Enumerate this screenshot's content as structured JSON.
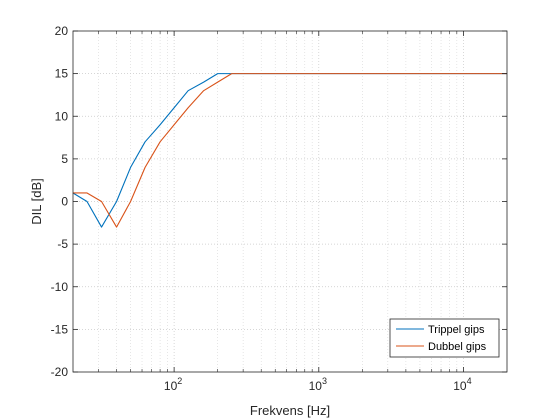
{
  "chart_data": {
    "type": "line",
    "xscale": "log",
    "xlabel": "Frekvens [Hz]",
    "ylabel": "DIL [dB]",
    "xlim": [
      20,
      20000
    ],
    "ylim": [
      -20,
      20
    ],
    "x_ticks": [
      {
        "value": 100,
        "base": "10",
        "exp": "2"
      },
      {
        "value": 1000,
        "base": "10",
        "exp": "3"
      },
      {
        "value": 10000,
        "base": "10",
        "exp": "4"
      }
    ],
    "y_ticks": [
      {
        "value": 20,
        "label": "20"
      },
      {
        "value": 15,
        "label": "15"
      },
      {
        "value": 10,
        "label": "10"
      },
      {
        "value": 5,
        "label": "5"
      },
      {
        "value": 0,
        "label": "0"
      },
      {
        "value": -5,
        "label": "-5"
      },
      {
        "value": -10,
        "label": "-10"
      },
      {
        "value": -15,
        "label": "-15"
      },
      {
        "value": -20,
        "label": "-20"
      }
    ],
    "grid": true,
    "minor_grid_x": true,
    "legend_position": "bottom-right",
    "series": [
      {
        "name": "Trippel gips",
        "color": "#0072BD",
        "points": [
          [
            20,
            1
          ],
          [
            25,
            0
          ],
          [
            31.5,
            -3
          ],
          [
            40,
            0
          ],
          [
            50,
            4
          ],
          [
            63,
            7
          ],
          [
            80,
            9
          ],
          [
            100,
            11
          ],
          [
            125,
            13
          ],
          [
            160,
            14
          ],
          [
            200,
            15
          ],
          [
            250,
            15
          ],
          [
            315,
            15
          ],
          [
            400,
            15
          ],
          [
            500,
            15
          ],
          [
            20000,
            15
          ]
        ]
      },
      {
        "name": "Dubbel gips",
        "color": "#D95319",
        "points": [
          [
            20,
            1
          ],
          [
            25,
            1
          ],
          [
            31.5,
            0
          ],
          [
            40,
            -3
          ],
          [
            50,
            0
          ],
          [
            63,
            4
          ],
          [
            80,
            7
          ],
          [
            100,
            9
          ],
          [
            125,
            11
          ],
          [
            160,
            13
          ],
          [
            200,
            14
          ],
          [
            250,
            15
          ],
          [
            315,
            15
          ],
          [
            400,
            15
          ],
          [
            500,
            15
          ],
          [
            20000,
            15
          ]
        ]
      }
    ]
  }
}
